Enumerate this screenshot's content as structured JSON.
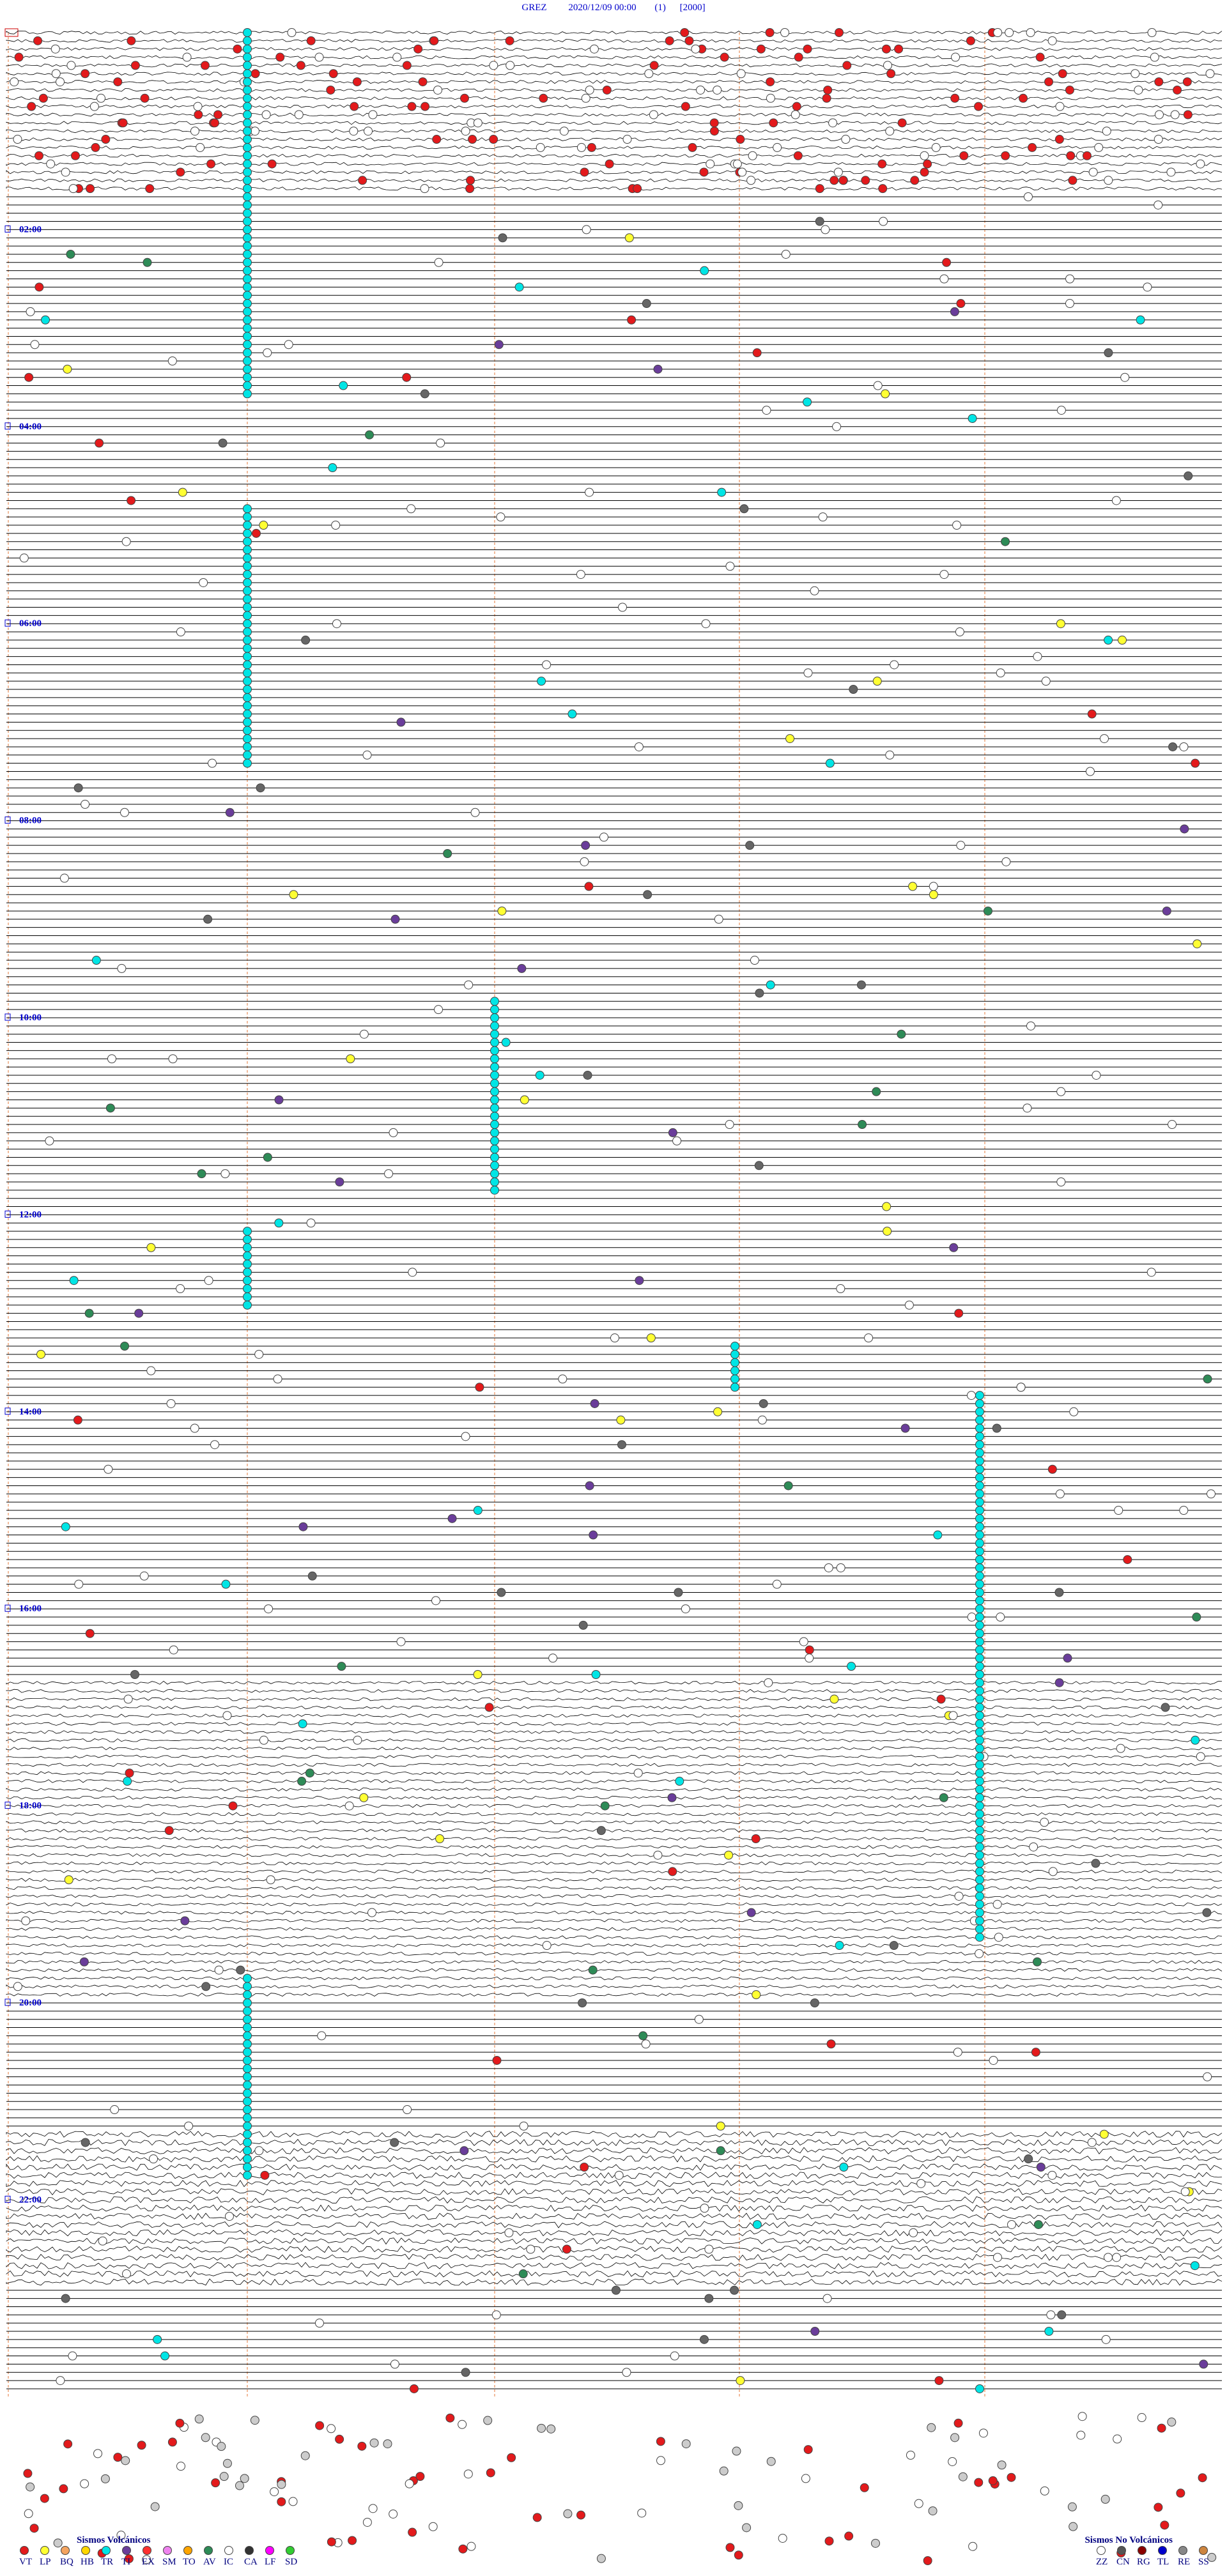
{
  "header": {
    "station": "GREZ",
    "datetime": "2020/12/09 00:00",
    "channel": "(1)",
    "scale": "[2000]"
  },
  "hour_labels": [
    "02:00",
    "04:00",
    "06:00",
    "08:00",
    "10:00",
    "12:00",
    "14:00",
    "16:00",
    "18:00",
    "20:00",
    "22:00"
  ],
  "legend_volcanic": {
    "title": "Sismos Volcánicos",
    "items": [
      {
        "code": "VT",
        "color": "#e31a1c"
      },
      {
        "code": "LP",
        "color": "#ffff33"
      },
      {
        "code": "BQ",
        "color": "#f4a460"
      },
      {
        "code": "HB",
        "color": "#ffd700"
      },
      {
        "code": "TR",
        "color": "#00e5e5"
      },
      {
        "code": "TI",
        "color": "#6a3d9a"
      },
      {
        "code": "EX",
        "color": "#ff3030"
      },
      {
        "code": "SM",
        "color": "#ee82ee"
      },
      {
        "code": "TO",
        "color": "#ffa500"
      },
      {
        "code": "AV",
        "color": "#2e8b57"
      },
      {
        "code": "IC",
        "color": "#ffffff"
      },
      {
        "code": "CA",
        "color": "#333333"
      },
      {
        "code": "LF",
        "color": "#ff00ff"
      },
      {
        "code": "SD",
        "color": "#32cd32"
      }
    ]
  },
  "legend_nonvolcanic": {
    "title": "Sismos No Volcánicos",
    "items": [
      {
        "code": "ZZ",
        "color": "#ffffff"
      },
      {
        "code": "CN",
        "color": "#555555"
      },
      {
        "code": "RG",
        "color": "#8b0000"
      },
      {
        "code": "TL",
        "color": "#0000cd"
      },
      {
        "code": "RE",
        "color": "#888888"
      },
      {
        "code": "SS",
        "color": "#cd853f"
      }
    ]
  }
}
